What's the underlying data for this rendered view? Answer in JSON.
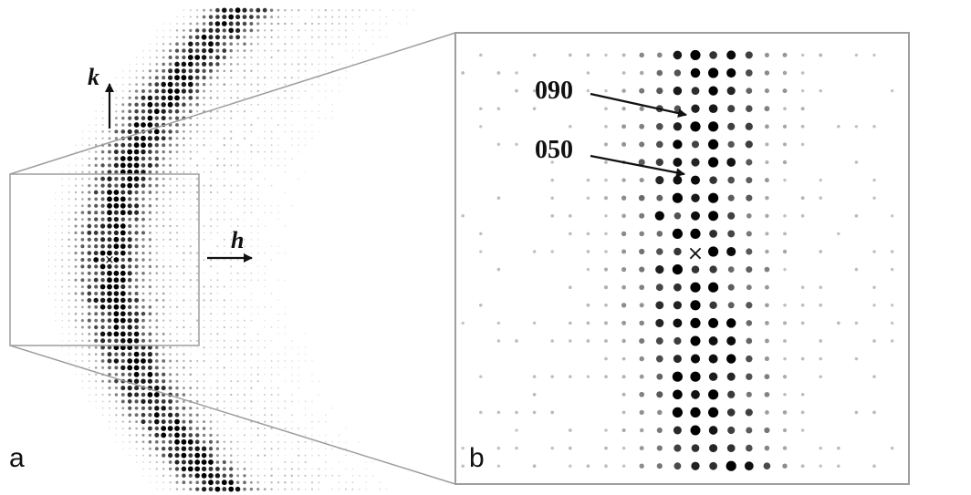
{
  "panels": {
    "a": {
      "letter": "a"
    },
    "b": {
      "letter": "b"
    }
  },
  "axes": {
    "k_label": "k",
    "h_label": "h"
  },
  "annotations": [
    {
      "id": "reflection-090",
      "text": "090"
    },
    {
      "id": "reflection-050",
      "text": "050"
    }
  ],
  "origin_marker": "×",
  "colors": {
    "spot": "#000000",
    "frame": "#9e9e9e",
    "text": "#111111"
  }
}
